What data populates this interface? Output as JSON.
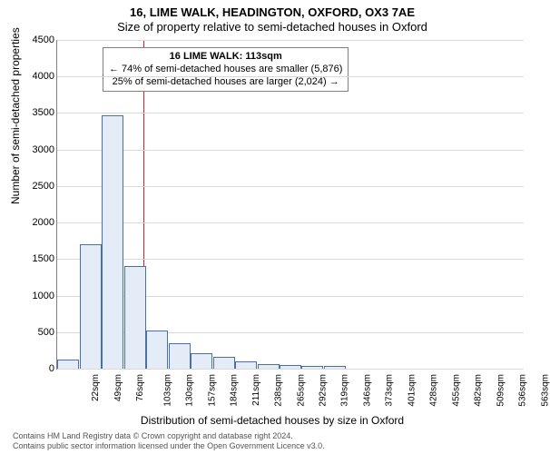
{
  "header": {
    "title_main": "16, LIME WALK, HEADINGTON, OXFORD, OX3 7AE",
    "title_sub": "Size of property relative to semi-detached houses in Oxford"
  },
  "chart": {
    "type": "histogram",
    "background_color": "#ffffff",
    "grid_color": "#d9d9d9",
    "axis_color": "#808080",
    "bar_fill": "#e4edf7",
    "bar_border": "#4a6fa5",
    "reference_line_color": "#c1272d",
    "ylabel": "Number of semi-detached properties",
    "xlabel": "Distribution of semi-detached houses by size in Oxford",
    "label_fontsize": 12,
    "tick_fontsize": 10,
    "ylim": [
      0,
      4500
    ],
    "yticks": [
      0,
      500,
      1000,
      1500,
      2000,
      2500,
      3000,
      3500,
      4000,
      4500
    ],
    "xticks": [
      "22sqm",
      "49sqm",
      "76sqm",
      "103sqm",
      "130sqm",
      "157sqm",
      "184sqm",
      "211sqm",
      "238sqm",
      "265sqm",
      "292sqm",
      "319sqm",
      "346sqm",
      "373sqm",
      "401sqm",
      "428sqm",
      "455sqm",
      "482sqm",
      "509sqm",
      "536sqm",
      "563sqm"
    ],
    "values": [
      130,
      1700,
      3470,
      1400,
      520,
      350,
      210,
      160,
      100,
      60,
      50,
      40,
      40,
      0,
      0,
      0,
      0,
      0,
      0,
      0,
      0
    ],
    "reference_x": 113,
    "x_start": 22,
    "x_step": 27,
    "bar_width_rel": 0.98
  },
  "annotation": {
    "title": "16 LIME WALK: 113sqm",
    "line1": "← 74% of semi-detached houses are smaller (5,876)",
    "line2": "25% of semi-detached houses are larger (2,024) →",
    "border_color": "#808080",
    "fontsize": 11
  },
  "footer": {
    "line1": "Contains HM Land Registry data © Crown copyright and database right 2024.",
    "line2": "Contains public sector information licensed under the Open Government Licence v3.0."
  }
}
